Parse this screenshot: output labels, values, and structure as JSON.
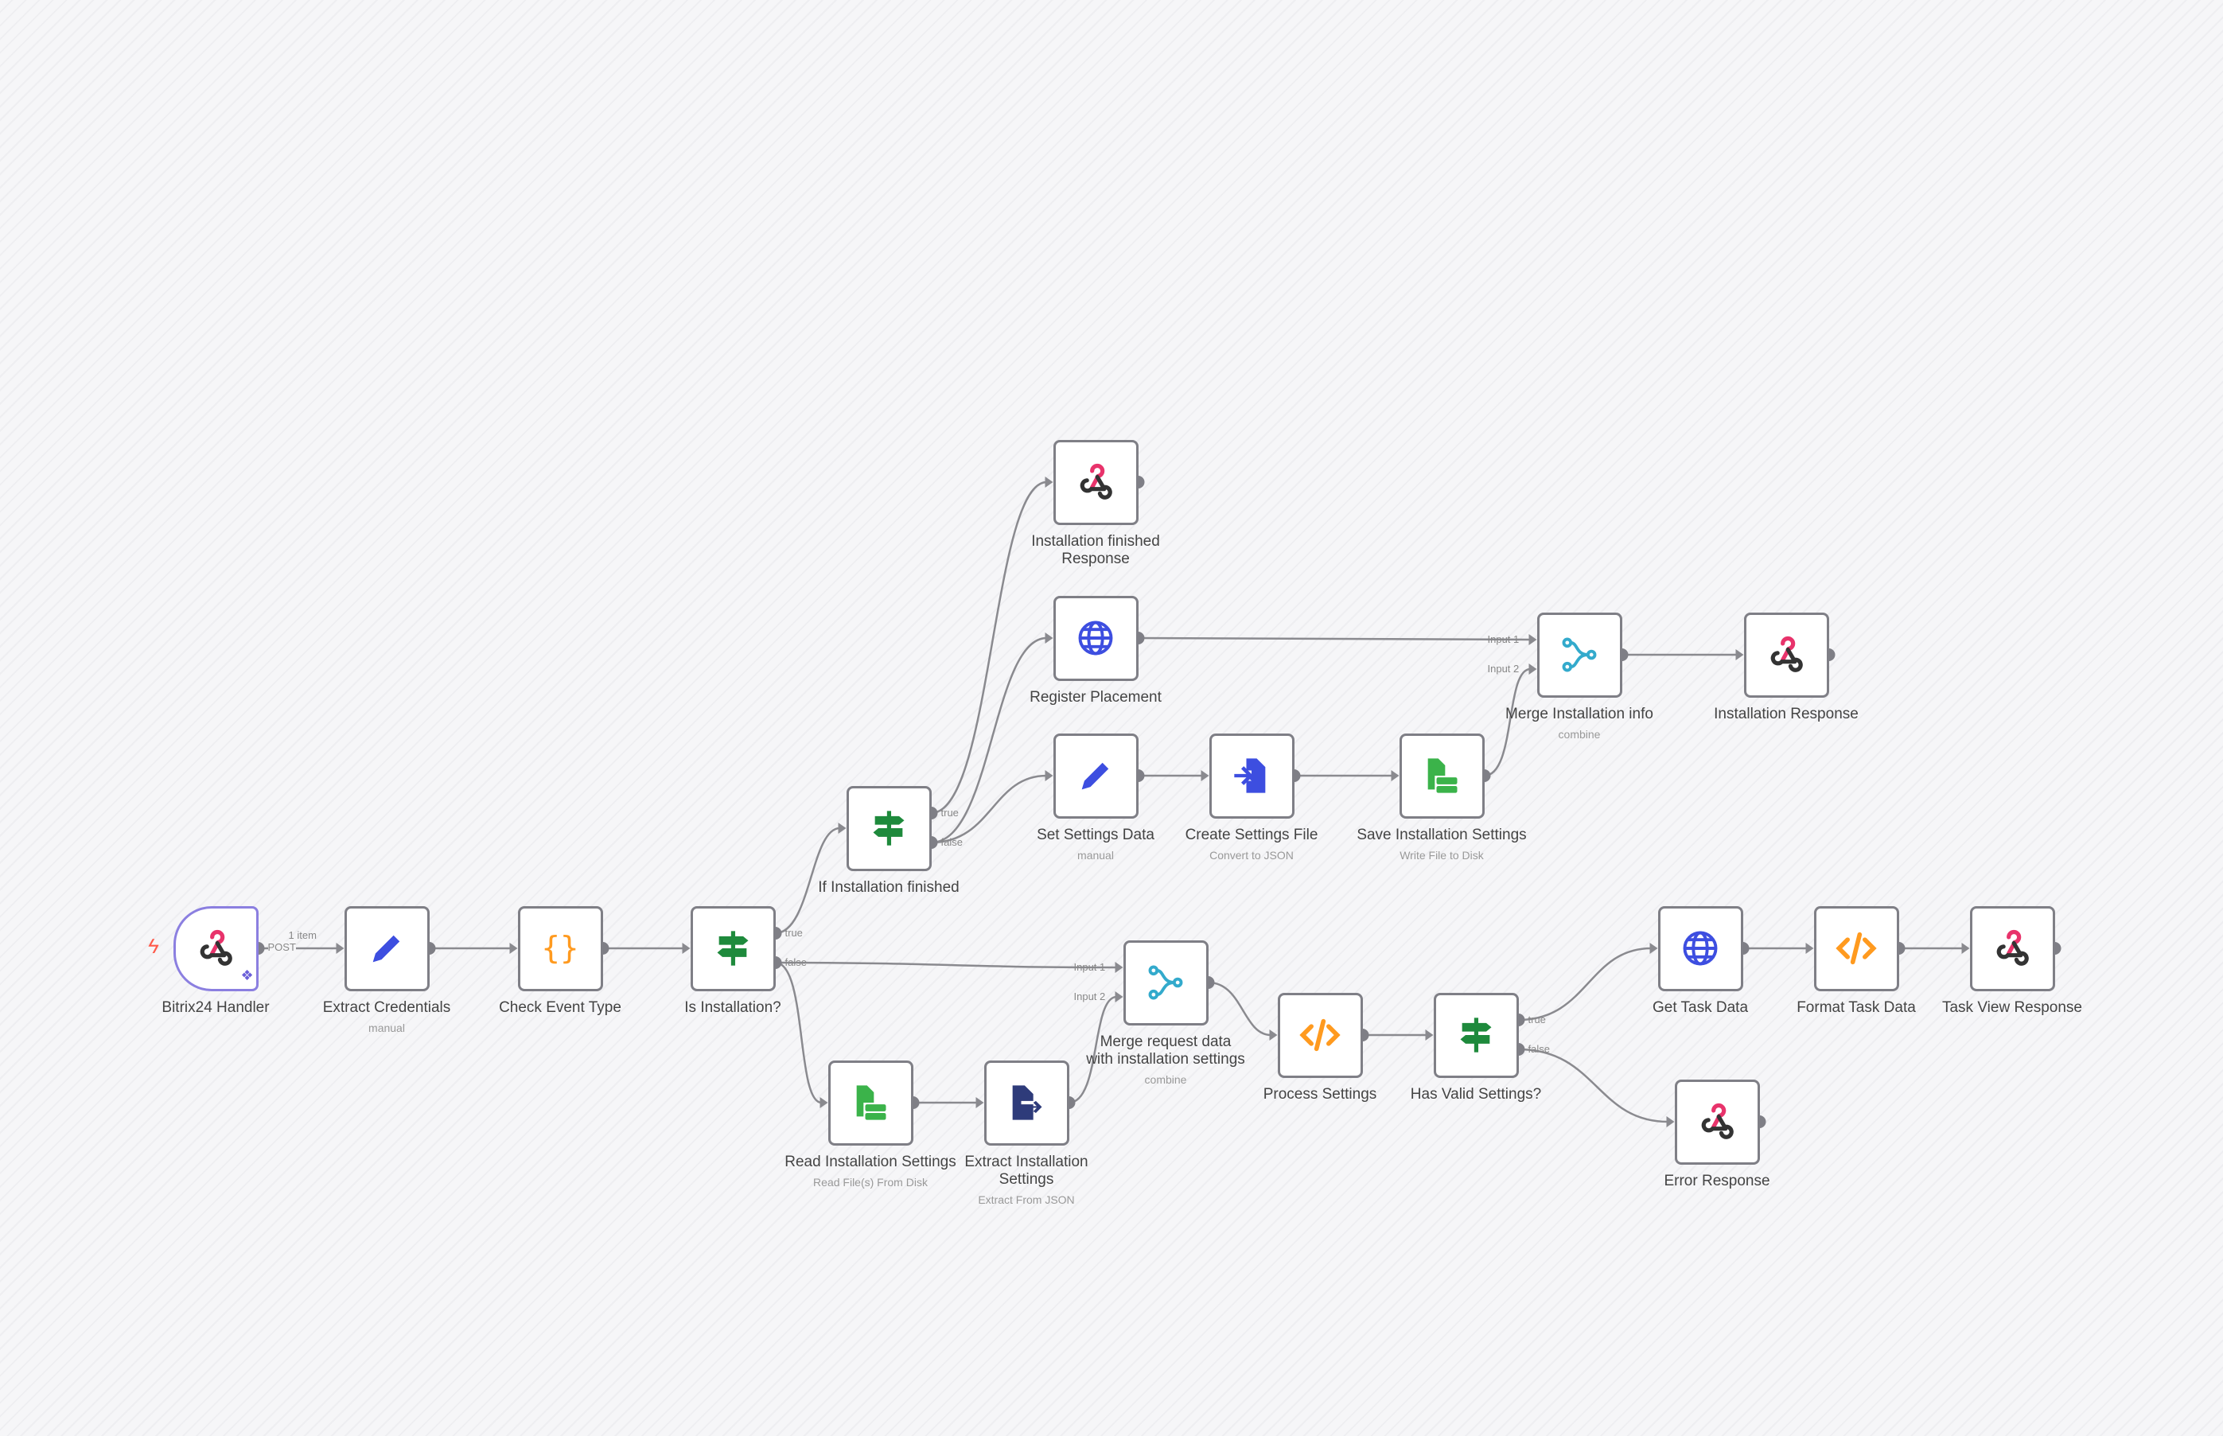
{
  "colors": {
    "edge": "#8a8a8f",
    "node_border": "#7f7f86",
    "trigger_border": "#8b7fe0",
    "webhook": "#e8336b",
    "blue": "#3d4ee0",
    "green": "#1e8a3c",
    "orange": "#ff9a1f",
    "teal": "#33aacc",
    "navy": "#2e3b7a",
    "filegreen": "#3bb34a"
  },
  "nodes": [
    {
      "id": "bitrix",
      "label": "Bitrix24 Handler",
      "subtitle": "",
      "icon": "webhook-icon",
      "trigger": true
    },
    {
      "id": "extract_cred",
      "label": "Extract Credentials",
      "subtitle": "manual",
      "icon": "pencil-icon"
    },
    {
      "id": "check_event",
      "label": "Check Event Type",
      "subtitle": "",
      "icon": "braces-icon"
    },
    {
      "id": "is_install",
      "label": "Is Installation?",
      "subtitle": "",
      "icon": "signpost-icon"
    },
    {
      "id": "if_finished",
      "label": "If Installation finished",
      "subtitle": "",
      "icon": "signpost-icon"
    },
    {
      "id": "finished_resp",
      "label": "Installation finished Response",
      "subtitle": "",
      "icon": "webhook-icon"
    },
    {
      "id": "register",
      "label": "Register Placement",
      "subtitle": "",
      "icon": "globe-icon"
    },
    {
      "id": "set_settings",
      "label": "Set Settings Data",
      "subtitle": "manual",
      "icon": "pencil-icon"
    },
    {
      "id": "create_file",
      "label": "Create Settings File",
      "subtitle": "Convert to JSON",
      "icon": "file-convert-icon"
    },
    {
      "id": "save_settings",
      "label": "Save Installation Settings",
      "subtitle": "Write File to Disk",
      "icon": "disk-file-icon"
    },
    {
      "id": "merge_install",
      "label": "Merge Installation info",
      "subtitle": "combine",
      "icon": "merge-icon"
    },
    {
      "id": "install_resp",
      "label": "Installation Response",
      "subtitle": "",
      "icon": "webhook-icon"
    },
    {
      "id": "merge_req",
      "label": "Merge request data with installation settings",
      "subtitle": "combine",
      "icon": "merge-icon"
    },
    {
      "id": "read_settings",
      "label": "Read Installation Settings",
      "subtitle": "Read File(s) From Disk",
      "icon": "disk-file-icon"
    },
    {
      "id": "extract_settings",
      "label": "Extract Installation Settings",
      "subtitle": "Extract From JSON",
      "icon": "file-extract-icon"
    },
    {
      "id": "process",
      "label": "Process Settings",
      "subtitle": "",
      "icon": "code-icon"
    },
    {
      "id": "has_valid",
      "label": "Has Valid Settings?",
      "subtitle": "",
      "icon": "signpost-icon"
    },
    {
      "id": "get_task",
      "label": "Get Task Data",
      "subtitle": "",
      "icon": "globe-icon"
    },
    {
      "id": "format_task",
      "label": "Format Task Data",
      "subtitle": "",
      "icon": "code-icon"
    },
    {
      "id": "task_resp",
      "label": "Task View Response",
      "subtitle": "",
      "icon": "webhook-icon"
    },
    {
      "id": "error_resp",
      "label": "Error Response",
      "subtitle": "",
      "icon": "webhook-icon"
    }
  ],
  "edges": [
    {
      "from": "bitrix",
      "to": "extract_cred",
      "out": "",
      "in": "",
      "label": "1 item",
      "method": "POST"
    },
    {
      "from": "extract_cred",
      "to": "check_event",
      "out": "",
      "in": ""
    },
    {
      "from": "check_event",
      "to": "is_install",
      "out": "",
      "in": ""
    },
    {
      "from": "is_install",
      "to": "if_finished",
      "out": "true",
      "in": ""
    },
    {
      "from": "is_install",
      "to": "merge_req",
      "out": "false",
      "in": "Input 1"
    },
    {
      "from": "is_install",
      "to": "read_settings",
      "out": "false",
      "in": ""
    },
    {
      "from": "if_finished",
      "to": "finished_resp",
      "out": "true",
      "in": ""
    },
    {
      "from": "if_finished",
      "to": "register",
      "out": "false",
      "in": ""
    },
    {
      "from": "if_finished",
      "to": "set_settings",
      "out": "false",
      "in": ""
    },
    {
      "from": "register",
      "to": "merge_install",
      "out": "",
      "in": "Input 1"
    },
    {
      "from": "set_settings",
      "to": "create_file",
      "out": "",
      "in": ""
    },
    {
      "from": "create_file",
      "to": "save_settings",
      "out": "",
      "in": ""
    },
    {
      "from": "save_settings",
      "to": "merge_install",
      "out": "",
      "in": "Input 2"
    },
    {
      "from": "merge_install",
      "to": "install_resp",
      "out": "",
      "in": ""
    },
    {
      "from": "read_settings",
      "to": "extract_settings",
      "out": "",
      "in": ""
    },
    {
      "from": "extract_settings",
      "to": "merge_req",
      "out": "",
      "in": "Input 2"
    },
    {
      "from": "merge_req",
      "to": "process",
      "out": "",
      "in": ""
    },
    {
      "from": "process",
      "to": "has_valid",
      "out": "",
      "in": ""
    },
    {
      "from": "has_valid",
      "to": "get_task",
      "out": "true",
      "in": ""
    },
    {
      "from": "has_valid",
      "to": "error_resp",
      "out": "false",
      "in": ""
    },
    {
      "from": "get_task",
      "to": "format_task",
      "out": "",
      "in": ""
    },
    {
      "from": "format_task",
      "to": "task_resp",
      "out": "",
      "in": ""
    }
  ]
}
